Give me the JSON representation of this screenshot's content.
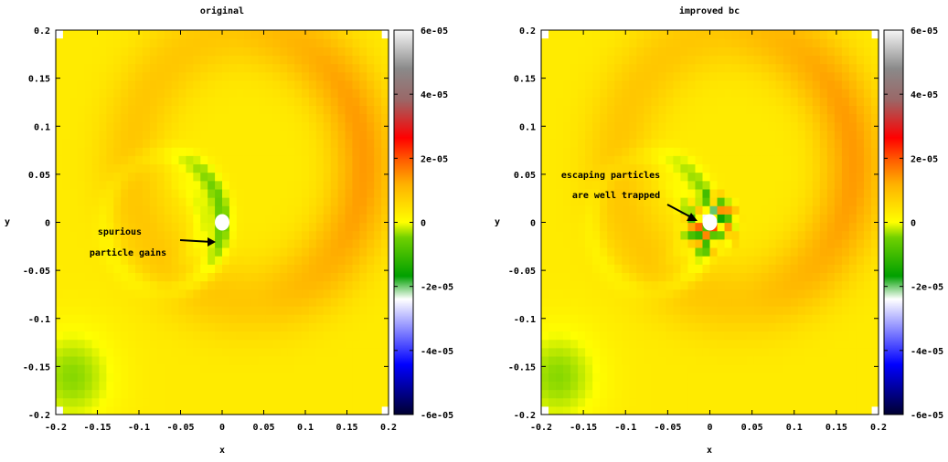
{
  "chart_data": [
    {
      "type": "heatmap",
      "title": "original",
      "xlabel": "x",
      "ylabel": "y",
      "xlim": [
        -0.2,
        0.2
      ],
      "ylim": [
        -0.2,
        0.2
      ],
      "x_ticks": [
        "-0.2",
        "-0.15",
        "-0.1",
        "-0.05",
        "0",
        "0.05",
        "0.1",
        "0.15",
        "0.2"
      ],
      "y_ticks": [
        "0.2",
        "0.15",
        "0.1",
        "0.05",
        "0",
        "-0.05",
        "-0.1",
        "-0.15",
        "-0.2"
      ],
      "colorbar": {
        "min": -6e-05,
        "max": 6e-05,
        "ticks": [
          "6e-05",
          "4e-05",
          "2e-05",
          "0",
          "-2e-05",
          "-4e-05",
          "-6e-05"
        ]
      },
      "annotation": {
        "lines": [
          "spurious",
          "particle gains"
        ],
        "points_to": [
          -0.005,
          -0.02
        ]
      },
      "features": [
        {
          "kind": "background",
          "value": 3e-06
        },
        {
          "kind": "outer_band",
          "center": [
            0.03,
            0.06
          ],
          "radius": 0.14,
          "width": 0.04,
          "value": 1.1e-05
        },
        {
          "kind": "inner_ring",
          "center": [
            -0.07,
            0.0
          ],
          "radius": 0.07,
          "width": 0.012,
          "value": -9e-06
        },
        {
          "kind": "corner_patch",
          "center": [
            -0.18,
            -0.16
          ],
          "radius": 0.05,
          "value": -7e-06
        }
      ],
      "hole": [
        0.0,
        0.0
      ]
    },
    {
      "type": "heatmap",
      "title": "improved bc",
      "xlabel": "x",
      "ylabel": "y",
      "xlim": [
        -0.2,
        0.2
      ],
      "ylim": [
        -0.2,
        0.2
      ],
      "x_ticks": [
        "-0.2",
        "-0.15",
        "-0.1",
        "-0.05",
        "0",
        "0.05",
        "0.1",
        "0.15",
        "0.2"
      ],
      "y_ticks": [
        "0.2",
        "0.15",
        "0.1",
        "0.05",
        "0",
        "-0.05",
        "-0.1",
        "-0.15",
        "-0.2"
      ],
      "colorbar": {
        "min": -6e-05,
        "max": 6e-05,
        "ticks": [
          "6e-05",
          "4e-05",
          "2e-05",
          "0",
          "-2e-05",
          "-4e-05",
          "-6e-05"
        ]
      },
      "annotation": {
        "lines": [
          "escaping particles",
          "are well trapped"
        ],
        "points_to": [
          -0.01,
          0.0
        ]
      },
      "features": [
        {
          "kind": "background",
          "value": 3e-06
        },
        {
          "kind": "outer_band",
          "center": [
            0.03,
            0.06
          ],
          "radius": 0.14,
          "width": 0.04,
          "value": 1.1e-05
        },
        {
          "kind": "inner_ring",
          "center": [
            -0.07,
            0.0
          ],
          "radius": 0.07,
          "width": 0.012,
          "value": -8e-06
        },
        {
          "kind": "corner_patch",
          "center": [
            -0.18,
            -0.16
          ],
          "radius": 0.05,
          "value": -7e-06
        },
        {
          "kind": "hole_fringe",
          "center": [
            0.0,
            0.0
          ],
          "radius": 0.04,
          "min": -2.5e-05,
          "max": 3e-05
        }
      ],
      "hole": [
        0.0,
        0.0
      ]
    }
  ],
  "colors": {
    "colormap": [
      "#000030",
      "#0000ff",
      "#ffffff",
      "#00a000",
      "#ffff00",
      "#ff7000",
      "#ff0000",
      "#8a8a8a",
      "#f5f5f5"
    ]
  }
}
